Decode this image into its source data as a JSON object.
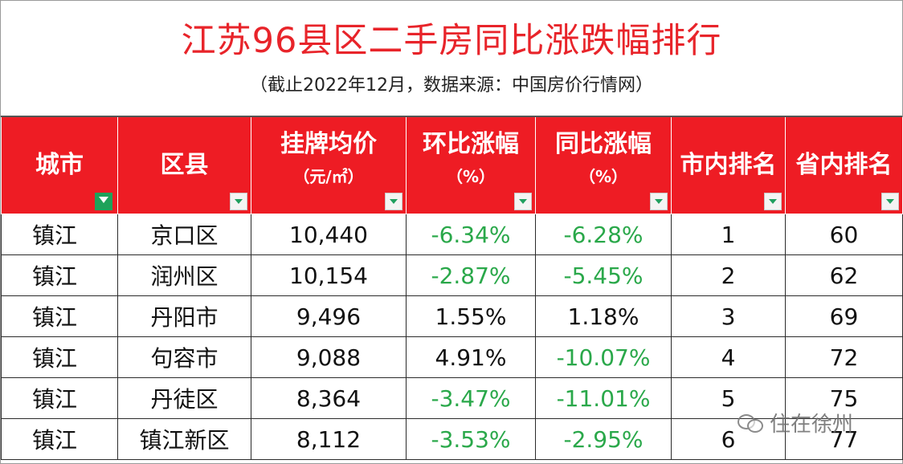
{
  "title": "江苏96县区二手房同比涨跌幅排行",
  "subtitle": "（截止2022年12月，数据来源：中国房价行情网）",
  "header": {
    "city": "城市",
    "district": "区县",
    "price": "挂牌均价",
    "price_unit": "（元/㎡）",
    "mom": "环比涨幅",
    "mom_unit": "（%）",
    "yoy": "同比涨幅",
    "yoy_unit": "（%）",
    "city_rank": "市内排名",
    "province_rank": "省内排名"
  },
  "rows": [
    {
      "city": "镇江",
      "district": "京口区",
      "price": "10,440",
      "mom": "-6.34%",
      "yoy": "-6.28%",
      "city_rank": "1",
      "province_rank": "60"
    },
    {
      "city": "镇江",
      "district": "润州区",
      "price": "10,154",
      "mom": "-2.87%",
      "yoy": "-5.45%",
      "city_rank": "2",
      "province_rank": "62"
    },
    {
      "city": "镇江",
      "district": "丹阳市",
      "price": "9,496",
      "mom": "1.55%",
      "yoy": "1.18%",
      "city_rank": "3",
      "province_rank": "69"
    },
    {
      "city": "镇江",
      "district": "句容市",
      "price": "9,088",
      "mom": "4.91%",
      "yoy": "-10.07%",
      "city_rank": "4",
      "province_rank": "72"
    },
    {
      "city": "镇江",
      "district": "丹徒区",
      "price": "8,364",
      "mom": "-3.47%",
      "yoy": "-11.01%",
      "city_rank": "5",
      "province_rank": "75"
    },
    {
      "city": "镇江",
      "district": "镇江新区",
      "price": "8,112",
      "mom": "-3.53%",
      "yoy": "-2.95%",
      "city_rank": "6",
      "province_rank": "77"
    }
  ],
  "colors": {
    "title_red": "#e8242a",
    "header_red": "#ee1c24",
    "negative_green": "#2aa84a"
  },
  "watermark": "住在徐州"
}
